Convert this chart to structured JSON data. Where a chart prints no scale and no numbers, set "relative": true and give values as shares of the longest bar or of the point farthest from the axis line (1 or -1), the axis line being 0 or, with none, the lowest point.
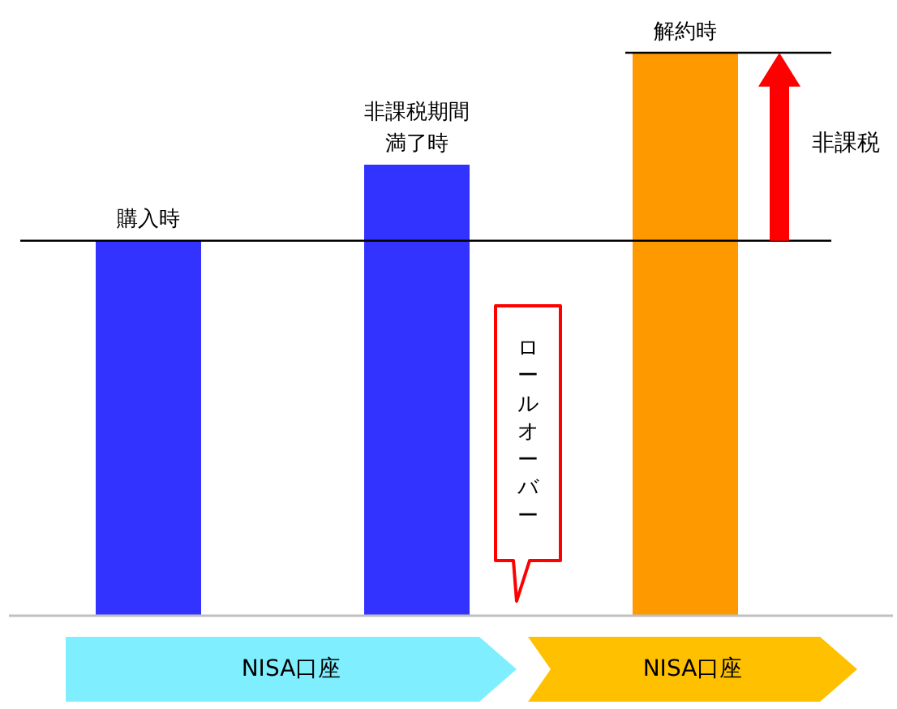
{
  "chart_data": {
    "type": "bar",
    "categories": [
      "購入時",
      "非課税期間満了時",
      "解約時"
    ],
    "values": [
      0.666,
      0.801,
      1
    ],
    "colors": [
      "#3333ff",
      "#3333ff",
      "#ff9900"
    ],
    "relative": true,
    "ref_lines": [
      {
        "axis": "y",
        "value": 0.666,
        "color": "#000000"
      },
      {
        "axis": "y",
        "value": 1,
        "color": "#000000"
      }
    ],
    "annotations": [
      "非課税",
      "ロールオーバー",
      "NISA口座",
      "NISA口座"
    ]
  }
}
